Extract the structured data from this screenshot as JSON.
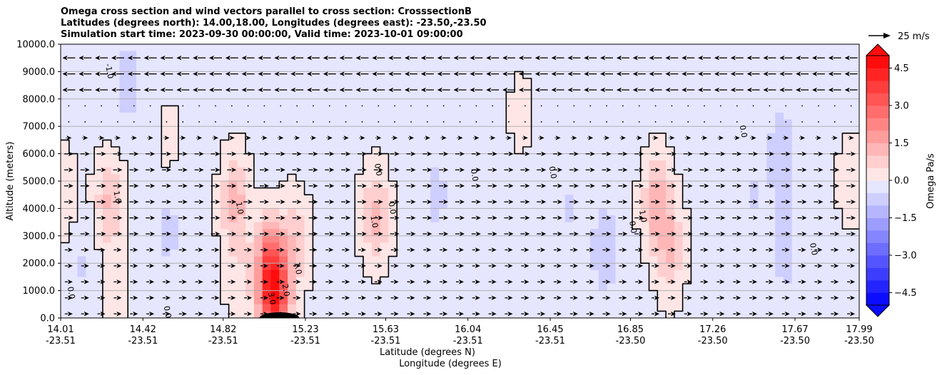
{
  "chart_data": {
    "type": "heatmap",
    "title": [
      "Omega cross section and wind vectors parallel to cross section: CrosssectionB",
      "Latitudes (degrees north): 14.00,18.00, Longitudes (degrees east): -23.50,-23.50",
      "Simulation start time: 2023-09-30 00:00:00, Valid time: 2023-10-01 09:00:00"
    ],
    "ylabel": "Altitude (meters)",
    "xlabel": "Latitude (degrees N)",
    "xlabel2": "Longitude (degrees E)",
    "ylim": [
      0,
      10000
    ],
    "yticks": [
      "0.0",
      "1000.0",
      "2000.0",
      "3000.0",
      "4000.0",
      "5000.0",
      "6000.0",
      "7000.0",
      "8000.0",
      "9000.0",
      "10000.0"
    ],
    "xticks": [
      {
        "lat": "14.01",
        "lon": "-23.51"
      },
      {
        "lat": "14.42",
        "lon": "-23.51"
      },
      {
        "lat": "14.82",
        "lon": "-23.51"
      },
      {
        "lat": "15.23",
        "lon": "-23.51"
      },
      {
        "lat": "15.63",
        "lon": "-23.51"
      },
      {
        "lat": "16.04",
        "lon": "-23.51"
      },
      {
        "lat": "16.45",
        "lon": "-23.51"
      },
      {
        "lat": "16.85",
        "lon": "-23.50"
      },
      {
        "lat": "17.26",
        "lon": "-23.50"
      },
      {
        "lat": "17.67",
        "lon": "-23.50"
      },
      {
        "lat": "17.99",
        "lon": "-23.50"
      }
    ],
    "xlim": [
      14.01,
      17.99
    ],
    "colorbar": {
      "label": "Omega Pa/s",
      "range": [
        -5,
        5
      ],
      "levels": 20,
      "ticks": [
        "4.5",
        "3.0",
        "1.5",
        "0.0",
        "−1.5",
        "−3.0",
        "−4.5"
      ],
      "tick_values": [
        4.5,
        3.0,
        1.5,
        0.0,
        -1.5,
        -3.0,
        -4.5
      ],
      "neg_color": "#0000ff",
      "pos_color": "#ff0000"
    },
    "quiver_key": "25 m/s",
    "regions": [
      {
        "lat": 14.02,
        "alt": 4500,
        "value": 0.6
      },
      {
        "lat": 14.13,
        "alt": 2000,
        "value": -0.4
      },
      {
        "lat": 14.25,
        "alt": 4200,
        "value": 1.2
      },
      {
        "lat": 14.28,
        "alt": 1000,
        "value": 0.4
      },
      {
        "lat": 14.35,
        "alt": 8600,
        "value": -0.6
      },
      {
        "lat": 14.55,
        "alt": 3200,
        "value": -0.5
      },
      {
        "lat": 14.55,
        "alt": 6500,
        "value": 0.3
      },
      {
        "lat": 14.88,
        "alt": 4200,
        "value": 1.4
      },
      {
        "lat": 14.9,
        "alt": 1100,
        "value": 0.5
      },
      {
        "lat": 15.05,
        "alt": 1800,
        "value": 2.6
      },
      {
        "lat": 15.08,
        "alt": 800,
        "value": 3.5
      },
      {
        "lat": 15.18,
        "alt": 2800,
        "value": 1.0
      },
      {
        "lat": 15.58,
        "alt": 3700,
        "value": 1.3
      },
      {
        "lat": 15.88,
        "alt": 4500,
        "value": -0.5
      },
      {
        "lat": 16.3,
        "alt": 7500,
        "value": 0.3
      },
      {
        "lat": 16.55,
        "alt": 4000,
        "value": -0.4
      },
      {
        "lat": 16.72,
        "alt": 2500,
        "value": -0.7
      },
      {
        "lat": 16.98,
        "alt": 4200,
        "value": 1.5
      },
      {
        "lat": 17.05,
        "alt": 2500,
        "value": 1.1
      },
      {
        "lat": 17.45,
        "alt": 4500,
        "value": -0.4
      },
      {
        "lat": 17.6,
        "alt": 6000,
        "value": -0.7
      },
      {
        "lat": 17.62,
        "alt": 2500,
        "value": -0.6
      },
      {
        "lat": 17.95,
        "alt": 5000,
        "value": 0.5
      },
      {
        "lat": 14.2,
        "alt": 9600,
        "value": -0.3
      }
    ],
    "contour_labels": [
      {
        "text": "1.0",
        "lat": 14.28,
        "alt": 4400
      },
      {
        "text": "0.0",
        "lat": 14.05,
        "alt": 900
      },
      {
        "text": "-1.0",
        "lat": 14.24,
        "alt": 9000
      },
      {
        "text": "0.0",
        "lat": 14.53,
        "alt": 200
      },
      {
        "text": "1.0",
        "lat": 14.89,
        "alt": 4000
      },
      {
        "text": "3.0",
        "lat": 15.05,
        "alt": 700
      },
      {
        "text": "2.0",
        "lat": 15.12,
        "alt": 1000
      },
      {
        "text": "1.0",
        "lat": 15.18,
        "alt": 1800
      },
      {
        "text": "0.0",
        "lat": 15.58,
        "alt": 5400
      },
      {
        "text": "1.0",
        "lat": 15.56,
        "alt": 3500
      },
      {
        "text": "0.0",
        "lat": 16.06,
        "alt": 5200
      },
      {
        "text": "0.0",
        "lat": 16.45,
        "alt": 5300
      },
      {
        "text": "0.0",
        "lat": 16.85,
        "alt": 3300
      },
      {
        "text": "1.0",
        "lat": 16.9,
        "alt": 3700
      },
      {
        "text": "0.0",
        "lat": 17.4,
        "alt": 6800
      },
      {
        "text": "0.0",
        "lat": 17.75,
        "alt": 2500
      },
      {
        "text": "0.0",
        "lat": 15.65,
        "alt": 4000
      }
    ]
  }
}
